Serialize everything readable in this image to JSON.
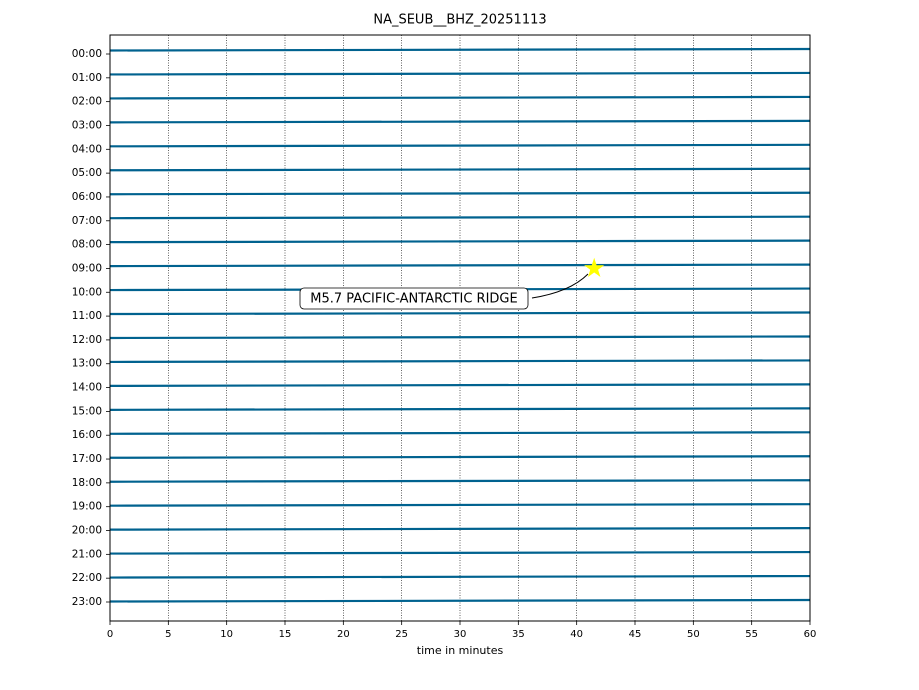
{
  "chart_data": {
    "type": "helicorder",
    "title": "NA_SEUB__BHZ_20251113",
    "x_label": "time in minutes",
    "xlim": [
      0,
      60
    ],
    "xticks": [
      0,
      5,
      10,
      15,
      20,
      25,
      30,
      35,
      40,
      45,
      50,
      55,
      60
    ],
    "categories": [
      "00:00",
      "01:00",
      "02:00",
      "03:00",
      "04:00",
      "05:00",
      "06:00",
      "07:00",
      "08:00",
      "09:00",
      "10:00",
      "11:00",
      "12:00",
      "13:00",
      "14:00",
      "15:00",
      "16:00",
      "17:00",
      "18:00",
      "19:00",
      "20:00",
      "21:00",
      "22:00",
      "23:00"
    ],
    "color": "#00628f",
    "grid": true,
    "event": {
      "label": "M5.7 PACIFIC-ANTARCTIC RIDGE",
      "x": 41.5,
      "row": 9,
      "color": "#ffff00"
    }
  }
}
